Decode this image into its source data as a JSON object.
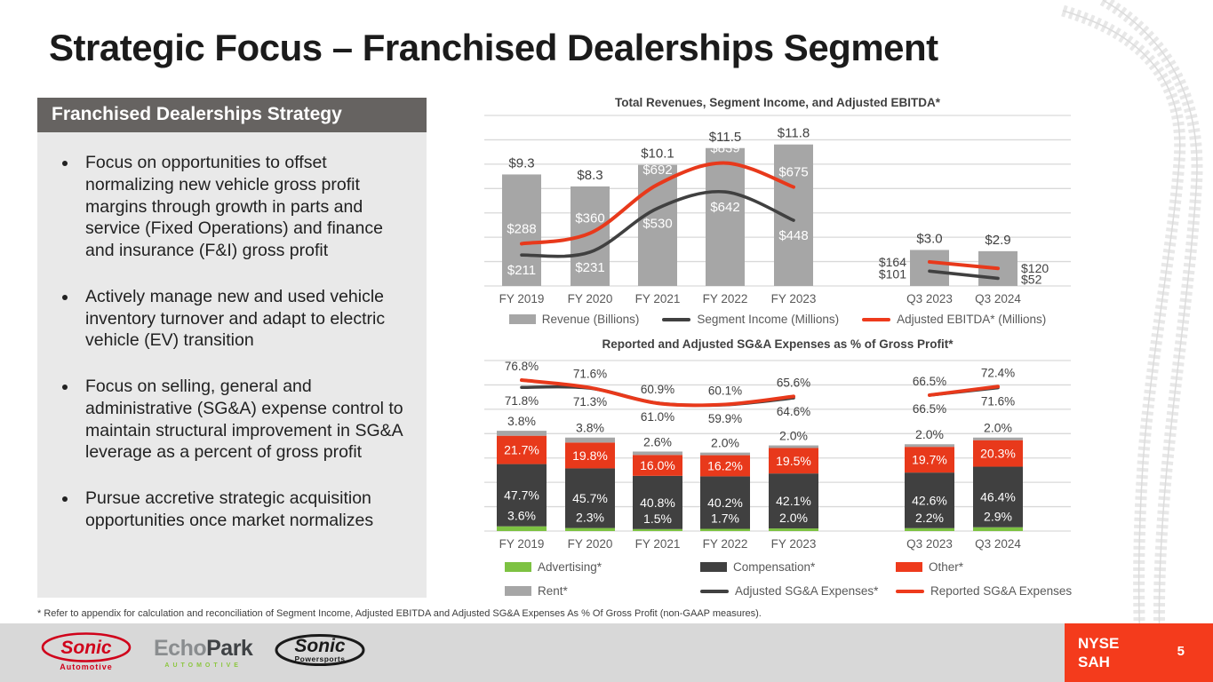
{
  "slide": {
    "title": "Strategic Focus – Franchised Dealerships Segment",
    "footnote": "* Refer to appendix for calculation and reconciliation of Segment Income, Adjusted EBITDA and Adjusted SG&A Expenses As % Of Gross Profit (non-GAAP measures).",
    "page_number": "5",
    "ticker": {
      "exchange": "NYSE",
      "symbol": "SAH"
    }
  },
  "strategy_panel": {
    "header": "Franchised Dealerships Strategy",
    "bullets": [
      "Focus on opportunities to offset normalizing new vehicle gross profit margins through growth in parts and service (Fixed Operations) and finance and insurance (F&I) gross profit",
      "Actively manage new and used vehicle inventory turnover and adapt to electric vehicle (EV) transition",
      "Focus on selling, general and administrative (SG&A) expense control to maintain structural improvement in SG&A leverage as a percent of gross profit",
      "Pursue accretive strategic acquisition opportunities once market normalizes"
    ]
  },
  "footer_logos": [
    {
      "name": "sonic-automotive",
      "text": "Sonic",
      "subtext": "Automotive"
    },
    {
      "name": "echopark",
      "text_echo": "Echo",
      "text_park": "Park",
      "subtext": "AUTOMOTIVE"
    },
    {
      "name": "sonic-powersports",
      "text": "Sonic",
      "subtext": "Powersports"
    }
  ],
  "colors": {
    "accent_red": "#F43B1C",
    "chart_red": "#E8391B",
    "dark_gray": "#404040",
    "bar_gray": "#A6A6A6",
    "advertising_green": "#7DC242",
    "rent_gray": "#A6A6A6",
    "gridline": "#D9D9D9",
    "axis_label": "#595959",
    "panel_header_gray": "#666361",
    "panel_body_gray": "#E9E9E9",
    "footer_band_gray": "#D8D8D8"
  },
  "chart_data": [
    {
      "type": "bar",
      "subtype": "bar-line combo",
      "title": "Total Revenues, Segment Income, and Adjusted EBITDA*",
      "categories": [
        "FY 2019",
        "FY 2020",
        "FY 2021",
        "FY 2022",
        "FY 2023",
        "Q3 2023",
        "Q3 2024"
      ],
      "bar_series": {
        "name": "Revenue (Billions)",
        "values": [
          9.3,
          8.3,
          10.1,
          11.5,
          11.8,
          3.0,
          2.9
        ]
      },
      "line_series": [
        {
          "name": "Segment Income (Millions)",
          "color": "dark_gray",
          "values": [
            211,
            231,
            530,
            642,
            448,
            101,
            52
          ]
        },
        {
          "name": "Adjusted EBITDA* (Millions)",
          "color": "chart_red",
          "values": [
            288,
            360,
            692,
            839,
            675,
            164,
            120
          ]
        }
      ],
      "layout": {
        "grid": true,
        "legend_position": "bottom",
        "group_gap_after": "FY 2023",
        "bar_axis_approx_max": 14,
        "line_axis_millions": true
      }
    },
    {
      "type": "bar",
      "subtype": "stacked bar + line",
      "title": "Reported and Adjusted SG&A Expenses as % of Gross Profit*",
      "categories": [
        "FY 2019",
        "FY 2020",
        "FY 2021",
        "FY 2022",
        "FY 2023",
        "Q3 2023",
        "Q3 2024"
      ],
      "stack_series": [
        {
          "name": "Advertising*",
          "color": "advertising_green",
          "values": [
            3.6,
            2.3,
            1.5,
            1.7,
            2.0,
            2.2,
            2.9
          ]
        },
        {
          "name": "Compensation*",
          "color": "dark_gray",
          "values": [
            47.7,
            45.7,
            40.8,
            40.2,
            42.1,
            42.6,
            46.4
          ]
        },
        {
          "name": "Other*",
          "color": "chart_red",
          "values": [
            21.7,
            19.8,
            16.0,
            16.2,
            19.5,
            19.7,
            20.3
          ]
        },
        {
          "name": "Rent*",
          "color": "rent_gray",
          "values": [
            3.8,
            3.8,
            2.6,
            2.0,
            2.0,
            2.0,
            2.0
          ]
        }
      ],
      "line_series": [
        {
          "name": "Adjusted SG&A Expenses*",
          "color": "dark_gray",
          "values": [
            71.8,
            71.3,
            61.0,
            59.9,
            64.6,
            66.5,
            71.6
          ]
        },
        {
          "name": "Reported SG&A Expenses",
          "color": "chart_red",
          "values": [
            76.8,
            71.6,
            60.9,
            60.1,
            65.6,
            66.5,
            72.4
          ]
        }
      ],
      "layout": {
        "grid": true,
        "legend_position": "bottom",
        "unit": "%",
        "lines_drawn_above_bars": true
      }
    }
  ]
}
